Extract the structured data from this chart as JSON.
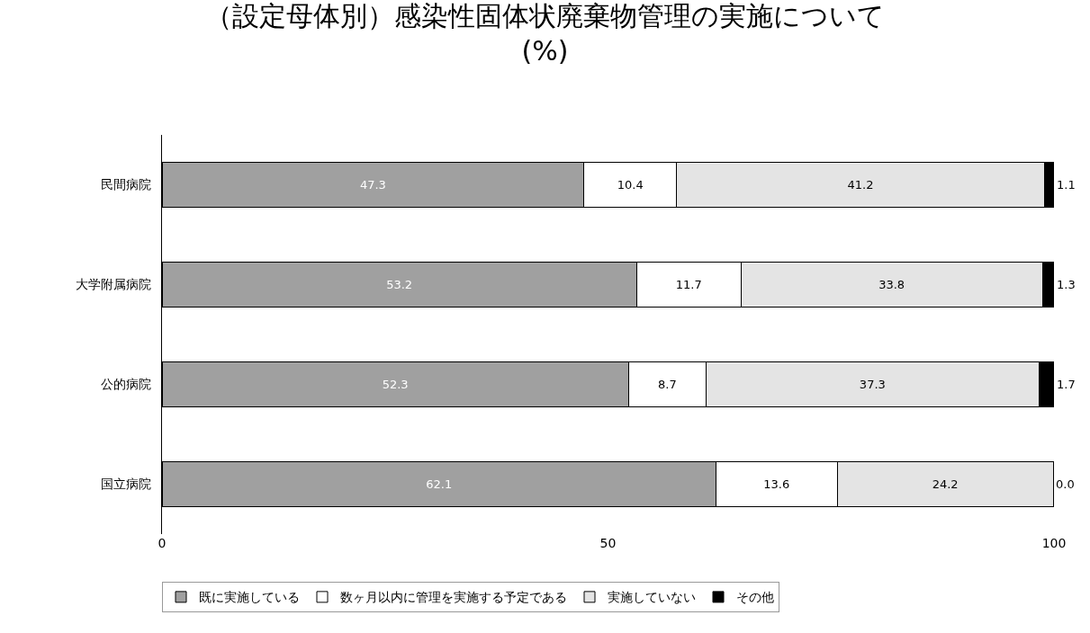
{
  "chart_data": {
    "type": "bar",
    "orientation": "horizontal",
    "stacked": true,
    "title": "（設定母体別）感染性固体状廃棄物管理の実施について",
    "subtitle": "(%)",
    "categories": [
      "民間病院",
      "大学附属病院",
      "公的病院",
      "国立病院"
    ],
    "series": [
      {
        "name": "既に実施している",
        "color": "#a0a0a0",
        "values": [
          47.3,
          53.2,
          52.3,
          62.1
        ],
        "value_labels": [
          "47.3",
          "53.2",
          "52.3",
          "62.1"
        ]
      },
      {
        "name": "数ヶ月以内に管理を実施する予定である",
        "color": "#ffffff",
        "values": [
          10.4,
          11.7,
          8.7,
          13.6
        ],
        "value_labels": [
          "10.4",
          "11.7",
          "8.7",
          "13.6"
        ]
      },
      {
        "name": "実施していない",
        "color": "#e4e4e4",
        "values": [
          41.2,
          33.8,
          37.3,
          24.2
        ],
        "value_labels": [
          "41.2",
          "33.8",
          "37.3",
          "24.2"
        ]
      },
      {
        "name": "その他",
        "color": "#000000",
        "values": [
          1.1,
          1.3,
          1.7,
          0
        ],
        "value_labels": [
          "1.1",
          "1.3",
          "1.7",
          "0.0"
        ]
      }
    ],
    "xlim": [
      0,
      100
    ],
    "xticks": [
      0,
      50,
      100
    ],
    "grid": false,
    "legend": "bottom"
  }
}
